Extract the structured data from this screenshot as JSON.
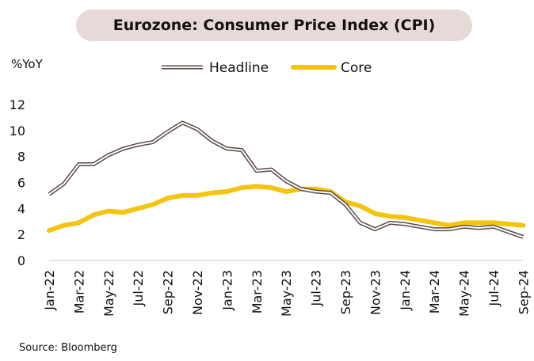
{
  "chart_data": {
    "type": "line",
    "title": "Eurozone: Consumer Price Index (CPI)",
    "ylabel": "%YoY",
    "xlabel": "",
    "ylim": [
      0,
      12
    ],
    "yticks": [
      0,
      2,
      4,
      6,
      8,
      10,
      12
    ],
    "legend_position": "top",
    "source": "Source: Bloomberg",
    "categories": [
      "Jan-22",
      "Feb-22",
      "Mar-22",
      "Apr-22",
      "May-22",
      "Jun-22",
      "Jul-22",
      "Aug-22",
      "Sep-22",
      "Oct-22",
      "Nov-22",
      "Dec-22",
      "Jan-23",
      "Feb-23",
      "Mar-23",
      "Apr-23",
      "May-23",
      "Jun-23",
      "Jul-23",
      "Aug-23",
      "Sep-23",
      "Oct-23",
      "Nov-23",
      "Dec-23",
      "Jan-24",
      "Feb-24",
      "Mar-24",
      "Apr-24",
      "May-24",
      "Jun-24",
      "Jul-24",
      "Aug-24",
      "Sep-24"
    ],
    "tick_labels": [
      "Jan-22",
      "Mar-22",
      "May-22",
      "Jul-22",
      "Sep-22",
      "Nov-22",
      "Jan-23",
      "Mar-23",
      "May-23",
      "Jul-23",
      "Sep-23",
      "Nov-23",
      "Jan-24",
      "Mar-24",
      "May-24",
      "Jul-24",
      "Sep-24"
    ],
    "series": [
      {
        "name": "Headline",
        "color": "#5a4a48",
        "values": [
          5.1,
          5.9,
          7.4,
          7.4,
          8.1,
          8.6,
          8.9,
          9.1,
          9.9,
          10.6,
          10.1,
          9.2,
          8.6,
          8.5,
          6.9,
          7.0,
          6.1,
          5.5,
          5.3,
          5.2,
          4.3,
          2.9,
          2.4,
          2.9,
          2.8,
          2.6,
          2.4,
          2.4,
          2.6,
          2.5,
          2.6,
          2.2,
          1.8
        ]
      },
      {
        "name": "Core",
        "color": "#f5c40f",
        "values": [
          2.3,
          2.7,
          2.9,
          3.5,
          3.8,
          3.7,
          4.0,
          4.3,
          4.8,
          5.0,
          5.0,
          5.2,
          5.3,
          5.6,
          5.7,
          5.6,
          5.3,
          5.5,
          5.5,
          5.3,
          4.5,
          4.2,
          3.6,
          3.4,
          3.3,
          3.1,
          2.9,
          2.7,
          2.9,
          2.9,
          2.9,
          2.8,
          2.7
        ]
      }
    ]
  }
}
